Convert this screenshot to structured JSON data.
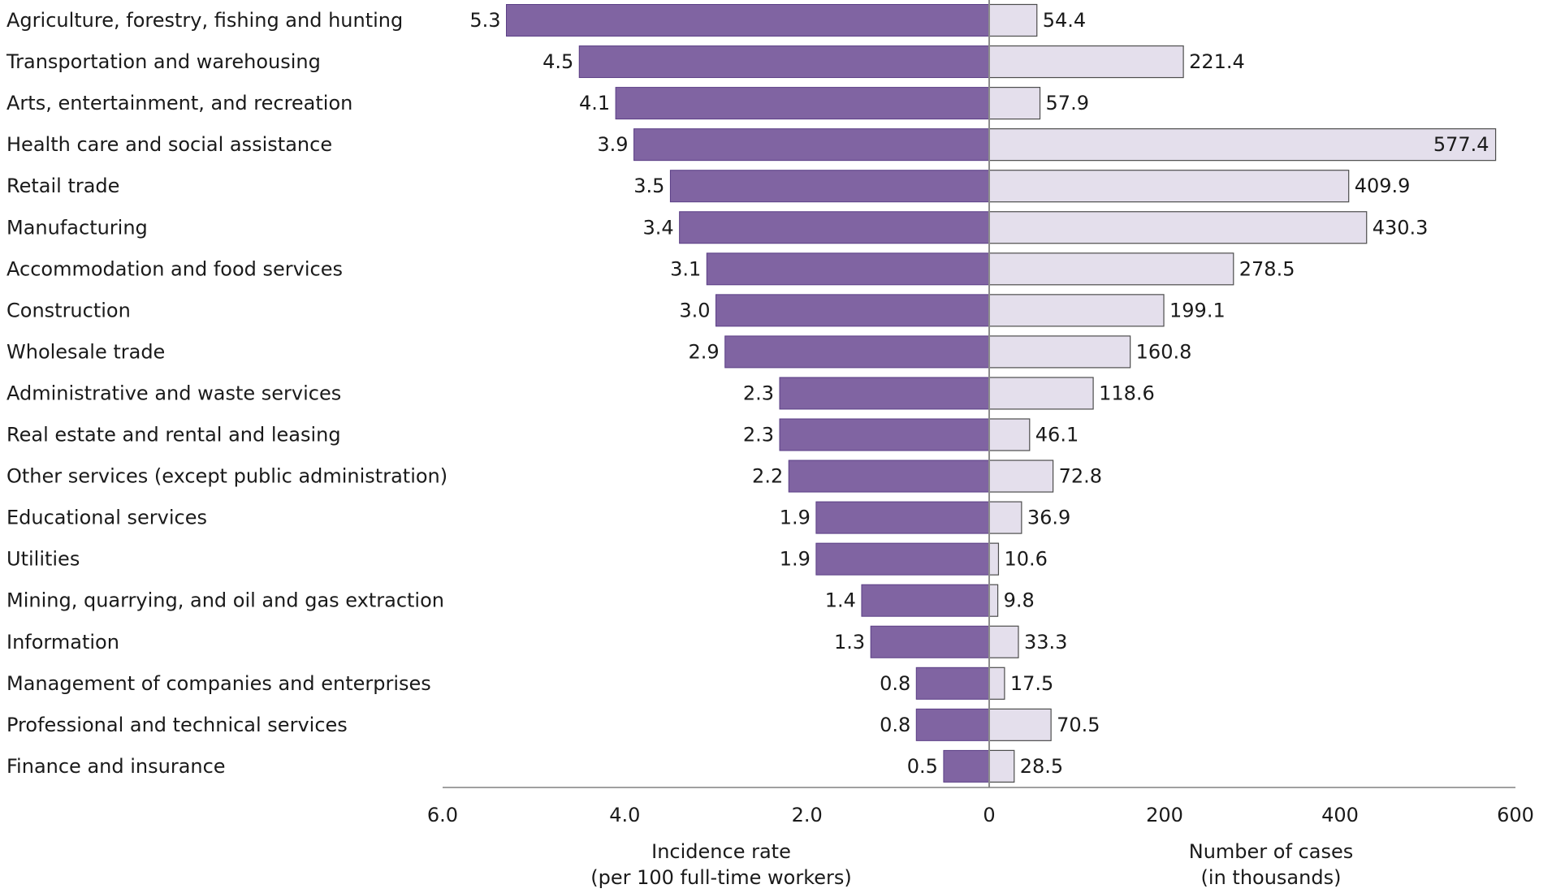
{
  "chart_data": {
    "type": "bar",
    "orientation": "horizontal",
    "layout": "back-to-back",
    "categories": [
      "Agriculture, forestry, fishing and hunting",
      "Transportation and warehousing",
      "Arts, entertainment, and recreation",
      "Health care and social assistance",
      "Retail trade",
      "Manufacturing",
      "Accommodation and food services",
      "Construction",
      "Wholesale trade",
      "Administrative and waste services",
      "Real estate and rental and leasing",
      "Other services (except public administration)",
      "Educational services",
      "Utilities",
      "Mining, quarrying, and oil and gas extraction",
      "Information",
      "Management of companies and enterprises",
      "Professional and technical services",
      "Finance and insurance"
    ],
    "series": [
      {
        "values": [
          5.3,
          4.5,
          4.1,
          3.9,
          3.5,
          3.4,
          3.1,
          3.0,
          2.9,
          2.3,
          2.3,
          2.2,
          1.9,
          1.9,
          1.4,
          1.3,
          0.8,
          0.8,
          0.5
        ],
        "labels": [
          "5.3",
          "4.5",
          "4.1",
          "3.9",
          "3.5",
          "3.4",
          "3.1",
          "3.0",
          "2.9",
          "2.3",
          "2.3",
          "2.2",
          "1.9",
          "1.9",
          "1.4",
          "1.3",
          "0.8",
          "0.8",
          "0.5"
        ],
        "color": "#8064a2",
        "side": "left"
      },
      {
        "values": [
          54.4,
          221.4,
          57.9,
          577.4,
          409.9,
          430.3,
          278.5,
          199.1,
          160.8,
          118.6,
          46.1,
          72.8,
          36.9,
          10.6,
          9.8,
          33.3,
          17.5,
          70.5,
          28.5
        ],
        "labels": [
          "54.4",
          "221.4",
          "57.9",
          "577.4",
          "409.9",
          "430.3",
          "278.5",
          "199.1",
          "160.8",
          "118.6",
          "46.1",
          "72.8",
          "36.9",
          "10.6",
          "9.8",
          "33.3",
          "17.5",
          "70.5",
          "28.5"
        ],
        "color": "#e4dfec",
        "stroke": "#4d4d4d",
        "side": "right"
      }
    ],
    "left_axis": {
      "xlim": [
        0,
        6.0
      ],
      "reversed": true,
      "ticks": [
        6.0,
        4.0,
        2.0,
        0
      ],
      "tick_labels": [
        "6.0",
        "4.0",
        "2.0",
        "0"
      ],
      "label_lines": [
        "Incidence rate",
        "(per 100 full-time workers)"
      ]
    },
    "right_axis": {
      "xlim": [
        0,
        600
      ],
      "ticks": [
        200,
        400,
        600
      ],
      "tick_labels": [
        "200",
        "400",
        "600"
      ],
      "label_lines": [
        "Number of cases",
        "(in thousands)"
      ]
    },
    "grid": false,
    "legend": "none"
  }
}
